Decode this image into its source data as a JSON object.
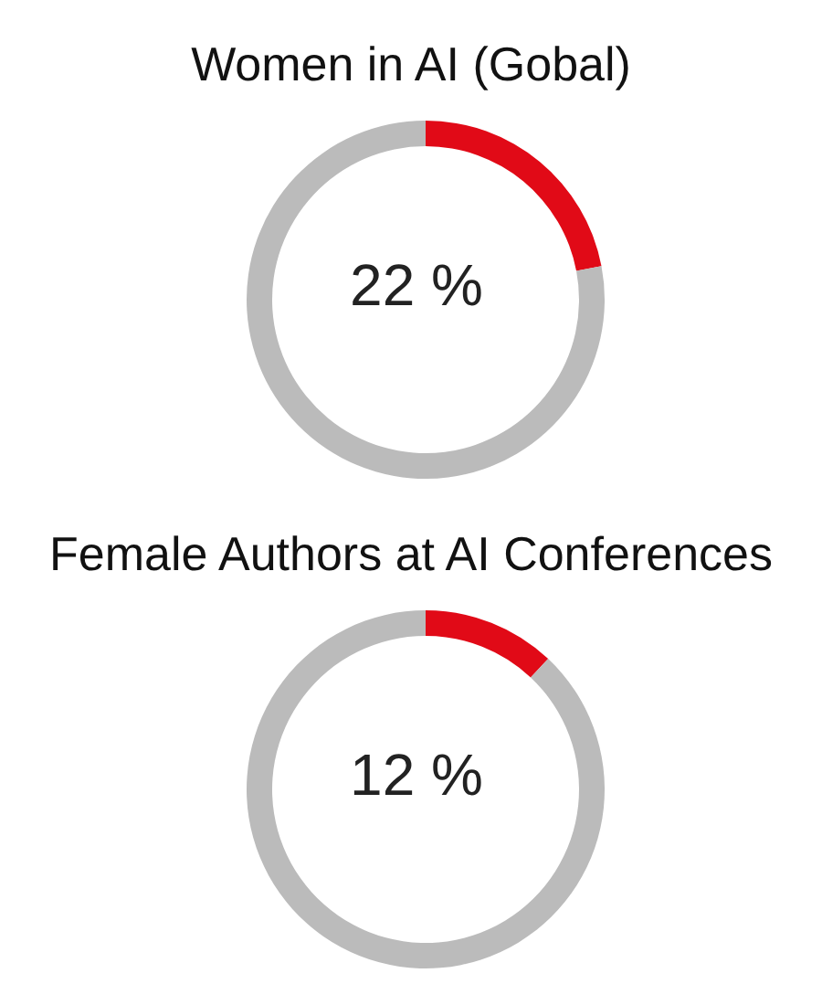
{
  "chart_data": [
    {
      "type": "donut",
      "title": "Women in AI (Gobal)",
      "categories": [
        null,
        null
      ],
      "values": [
        22,
        78
      ],
      "colors": [
        "#e10a17",
        "#bbbbbb"
      ],
      "annotations": [
        "22 %"
      ]
    },
    {
      "type": "donut",
      "title": "Female Authors at AI Conferences",
      "categories": [
        null,
        null
      ],
      "values": [
        12,
        88
      ],
      "colors": [
        "#e10a17",
        "#bbbbbb"
      ],
      "annotations": [
        "12 %"
      ]
    }
  ]
}
